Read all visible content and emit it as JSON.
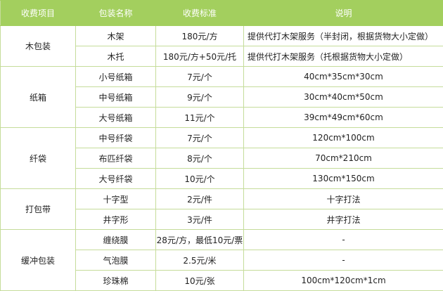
{
  "headers": [
    "收费项目",
    "包装名称",
    "收费标准",
    "说明"
  ],
  "groups": [
    {
      "category": "木包装",
      "rows": [
        {
          "name": "木架",
          "price": "180元/方",
          "note": "提供代打木架服务（半封闭，根据货物大小定做）"
        },
        {
          "name": "木托",
          "price": "180元/方+50元/托",
          "note": "提供代打木架服务（托根据货物大小定做）"
        }
      ]
    },
    {
      "category": "纸箱",
      "rows": [
        {
          "name": "小号纸箱",
          "price": "7元/个",
          "note": "40cm*35cm*30cm"
        },
        {
          "name": "中号纸箱",
          "price": "9元/个",
          "note": "30cm*40cm*50cm"
        },
        {
          "name": "大号纸箱",
          "price": "11元/个",
          "note": "39cm*49cm*60cm"
        }
      ]
    },
    {
      "category": "纤袋",
      "rows": [
        {
          "name": "中号纤袋",
          "price": "7元/个",
          "note": "120cm*100cm"
        },
        {
          "name": "布匹纤袋",
          "price": "8元/个",
          "note": "70cm*210cm"
        },
        {
          "name": "大号纤袋",
          "price": "10元/个",
          "note": "130cm*150cm"
        }
      ]
    },
    {
      "category": "打包带",
      "rows": [
        {
          "name": "十字型",
          "price": "2元/件",
          "note": "十字打法"
        },
        {
          "name": "井字形",
          "price": "3元/件",
          "note": "井字打法"
        }
      ]
    },
    {
      "category": "缓冲包装",
      "rows": [
        {
          "name": "缠绕膜",
          "price": "28元/方，最低10元/票",
          "note": "-"
        },
        {
          "name": "气泡膜",
          "price": "2.5元/米",
          "note": "-"
        },
        {
          "name": "珍珠棉",
          "price": "10元/张",
          "note": "100cm*120cm*1cm"
        }
      ]
    }
  ]
}
